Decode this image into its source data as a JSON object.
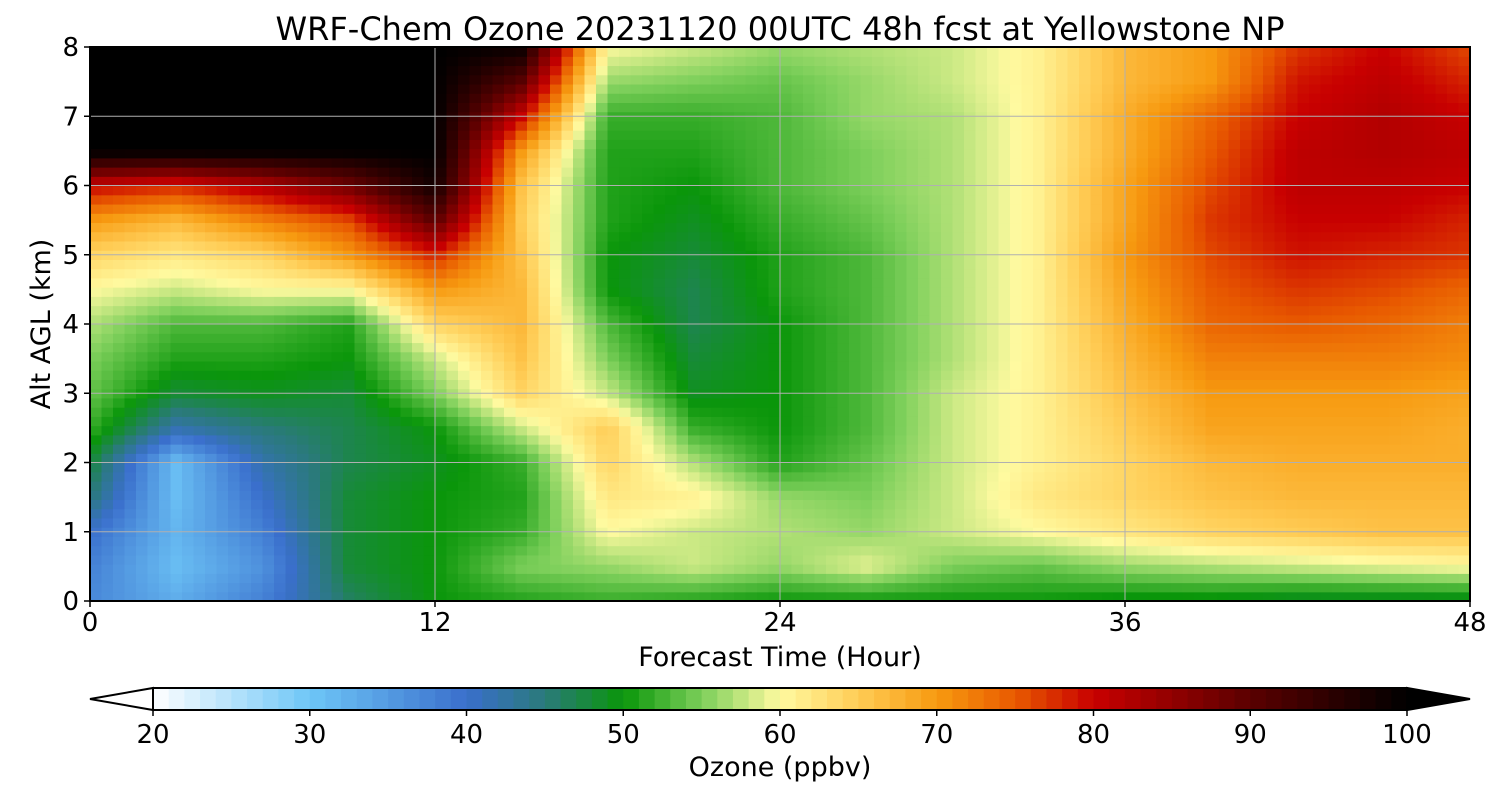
{
  "chart_data": {
    "type": "heatmap",
    "title": "WRF-Chem Ozone  20231120 00UTC 48h fcst at Yellowstone NP",
    "xlabel": "Forecast Time (Hour)",
    "ylabel": "Alt AGL (km)",
    "xlim": [
      0,
      48
    ],
    "ylim": [
      0,
      8
    ],
    "xticks": [
      0,
      12,
      24,
      36,
      48
    ],
    "yticks": [
      0,
      1,
      2,
      3,
      4,
      5,
      6,
      7,
      8
    ],
    "grid": true,
    "x": [
      0,
      3,
      6,
      9,
      12,
      15,
      18,
      21,
      24,
      27,
      30,
      33,
      36,
      39,
      42,
      45,
      48
    ],
    "y": [
      0,
      0.5,
      1,
      1.5,
      2,
      2.5,
      3,
      3.5,
      4,
      4.5,
      5,
      5.5,
      6,
      6.5,
      7,
      7.5,
      8
    ],
    "z": [
      [
        37,
        33,
        38,
        46,
        50,
        51,
        52,
        51,
        50,
        50,
        50,
        50,
        49,
        49,
        48,
        48,
        48
      ],
      [
        38,
        31,
        36,
        48,
        50,
        55,
        56,
        58,
        56,
        59,
        55,
        54,
        56,
        57,
        58,
        59,
        60
      ],
      [
        40,
        32,
        38,
        48,
        50,
        52,
        60,
        58,
        57,
        56,
        58,
        60,
        62,
        64,
        65,
        66,
        66
      ],
      [
        45,
        31,
        40,
        48,
        50,
        51,
        62,
        61,
        56,
        55,
        58,
        62,
        64,
        66,
        67,
        67,
        67
      ],
      [
        48,
        31,
        42,
        47,
        49,
        52,
        64,
        57,
        51,
        54,
        58,
        61,
        64,
        67,
        68,
        68,
        68
      ],
      [
        52,
        42,
        45,
        47,
        50,
        58,
        65,
        52,
        50,
        53,
        58,
        61,
        65,
        69,
        69,
        69,
        68
      ],
      [
        54,
        48,
        49,
        48,
        55,
        64,
        58,
        49,
        50,
        53,
        58,
        61,
        66,
        70,
        70,
        70,
        69
      ],
      [
        55,
        51,
        51,
        50,
        58,
        66,
        55,
        48,
        50,
        53,
        57,
        61,
        67,
        72,
        72,
        72,
        71
      ],
      [
        57,
        53,
        53,
        51,
        64,
        67,
        53,
        47,
        50,
        53,
        57,
        61,
        68,
        74,
        75,
        74,
        72
      ],
      [
        60,
        58,
        60,
        60,
        70,
        67,
        50,
        47,
        51,
        53,
        57,
        61,
        69,
        75,
        77,
        76,
        74
      ],
      [
        64,
        62,
        64,
        70,
        78,
        66,
        50,
        48,
        51,
        53,
        57,
        61,
        70,
        76,
        79,
        78,
        77
      ],
      [
        70,
        67,
        72,
        76,
        90,
        65,
        51,
        49,
        52,
        54,
        57,
        61,
        69,
        77,
        80,
        80,
        78
      ],
      [
        80,
        78,
        82,
        88,
        98,
        66,
        51,
        50,
        53,
        55,
        57,
        61,
        69,
        76,
        81,
        81,
        80
      ],
      [
        100,
        100,
        100,
        100,
        100,
        70,
        51,
        51,
        53,
        55,
        57,
        61,
        68,
        75,
        81,
        82,
        81
      ],
      [
        100,
        100,
        100,
        100,
        100,
        80,
        52,
        52,
        53,
        56,
        57,
        61,
        68,
        74,
        80,
        82,
        80
      ],
      [
        100,
        100,
        100,
        100,
        100,
        90,
        56,
        55,
        54,
        56,
        58,
        61,
        67,
        70,
        79,
        81,
        78
      ],
      [
        100,
        100,
        100,
        100,
        100,
        99,
        60,
        58,
        56,
        57,
        58,
        61,
        67,
        70,
        77,
        80,
        76
      ]
    ],
    "colorbar": {
      "label": "Ozone  (ppbv)",
      "min": 20,
      "max": 100,
      "ticks": [
        20,
        30,
        40,
        50,
        60,
        70,
        80,
        90,
        100
      ],
      "extend": "both",
      "stops": [
        {
          "v": 20,
          "c": "#ffffff"
        },
        {
          "v": 30,
          "c": "#6ec6f7"
        },
        {
          "v": 40,
          "c": "#3a6fcc"
        },
        {
          "v": 45,
          "c": "#2a7a7a"
        },
        {
          "v": 50,
          "c": "#0a960a"
        },
        {
          "v": 55,
          "c": "#7ccf5a"
        },
        {
          "v": 60,
          "c": "#fffaa0"
        },
        {
          "v": 65,
          "c": "#ffcc55"
        },
        {
          "v": 70,
          "c": "#f79a10"
        },
        {
          "v": 75,
          "c": "#e85a00"
        },
        {
          "v": 80,
          "c": "#c80000"
        },
        {
          "v": 90,
          "c": "#5a0000"
        },
        {
          "v": 100,
          "c": "#000000"
        }
      ]
    }
  }
}
